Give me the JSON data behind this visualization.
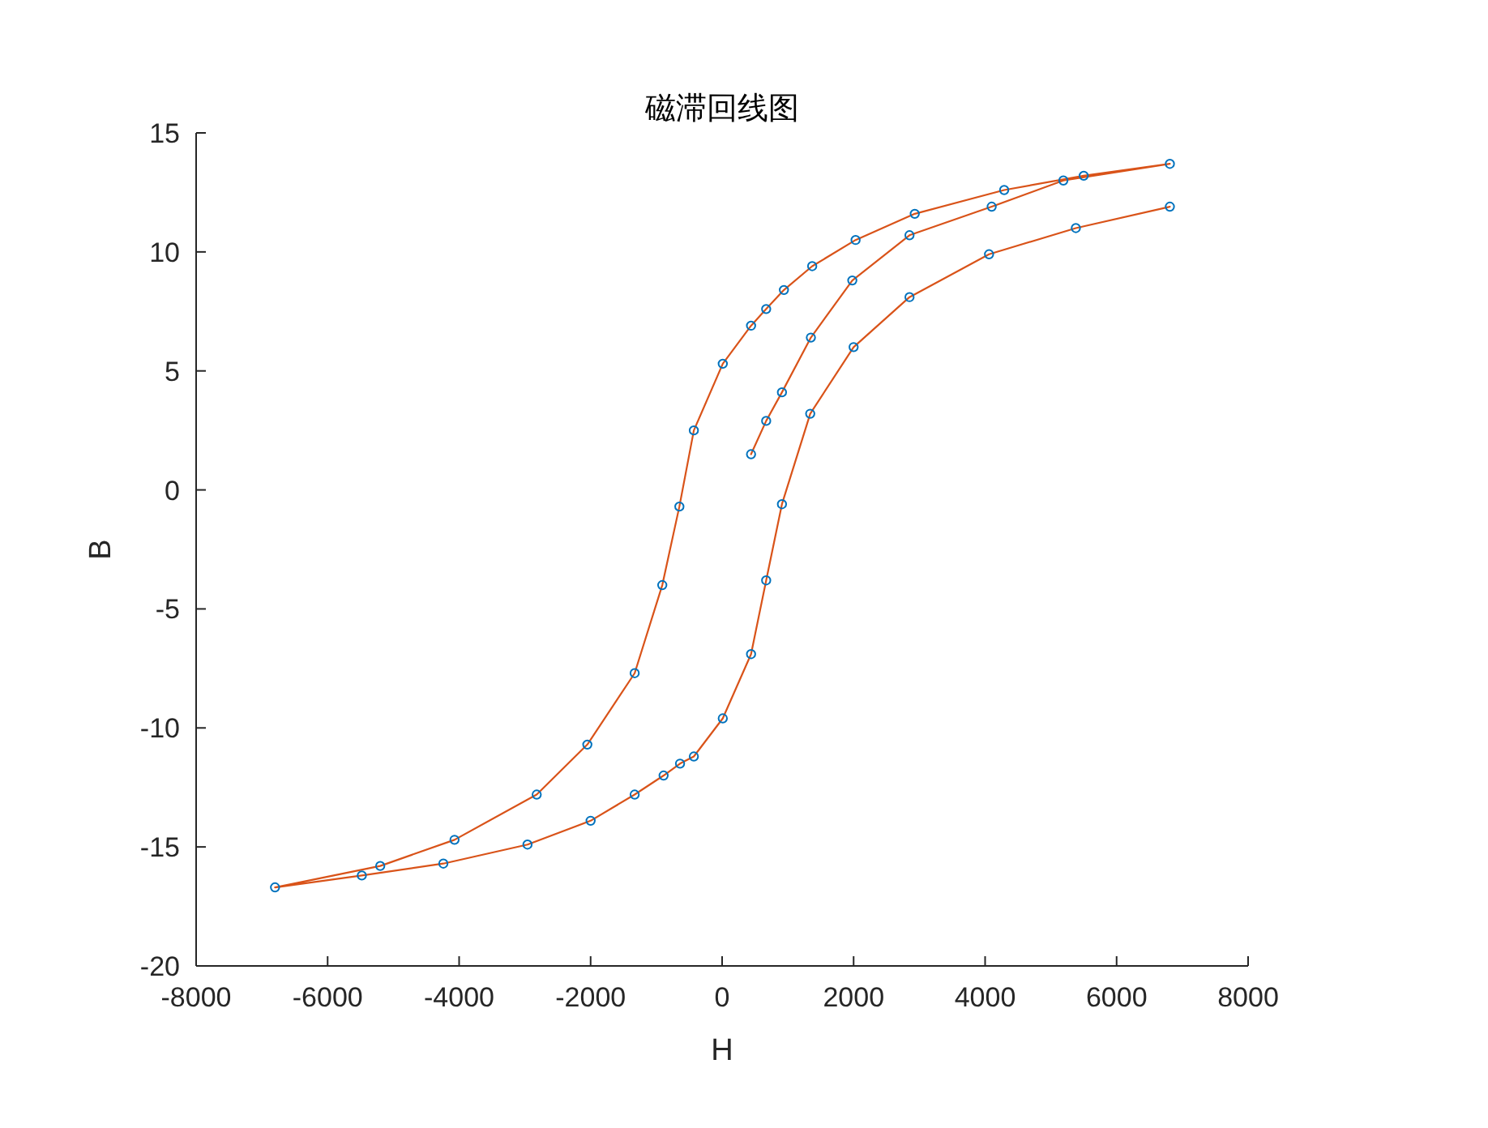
{
  "chart_data": {
    "type": "line",
    "title": "磁滞回线图",
    "xlabel": "H",
    "ylabel": "B",
    "xlim": [
      -8000,
      8000
    ],
    "xticks": [
      -8000,
      -6000,
      -4000,
      -2000,
      0,
      2000,
      4000,
      6000,
      8000
    ],
    "ylim": [
      -20,
      15
    ],
    "yticks": [
      -20,
      -15,
      -10,
      -5,
      0,
      5,
      10,
      15
    ],
    "marker": "circle",
    "line_style": "solid",
    "series": [
      {
        "color": "#d95319",
        "x": [
          440,
          670,
          910,
          1350,
          1980,
          2850,
          4100,
          5190,
          6810,
          5500,
          4290,
          2930,
          2030,
          1370,
          940,
          670,
          440,
          10,
          -430,
          -650,
          -910,
          -1330,
          -2050,
          -2820,
          -4070,
          -5200,
          -6800,
          -5480,
          -4240,
          -2960,
          -2000,
          -1330,
          -890,
          -640,
          -430,
          10,
          440,
          670,
          910,
          1340,
          2000,
          2850,
          4060,
          5380,
          6810
        ],
        "values": [
          1.5,
          2.9,
          4.1,
          6.4,
          8.8,
          10.7,
          11.9,
          13.0,
          13.7,
          13.2,
          12.6,
          11.6,
          10.5,
          9.4,
          8.4,
          7.6,
          6.9,
          5.3,
          2.5,
          -0.7,
          -4.0,
          -7.7,
          -10.7,
          -12.8,
          -14.7,
          -15.8,
          -16.7,
          -16.2,
          -15.7,
          -14.9,
          -13.9,
          -12.8,
          -12.0,
          -11.5,
          -11.2,
          -9.6,
          -6.9,
          -3.8,
          -0.6,
          3.2,
          6.0,
          8.1,
          9.9,
          11.0,
          11.9
        ]
      }
    ]
  }
}
